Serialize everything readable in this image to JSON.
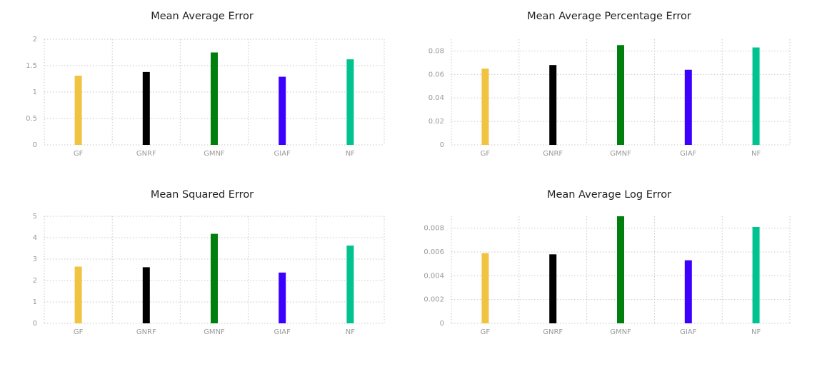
{
  "chart_data": [
    {
      "type": "bar",
      "title": "Mean Average Error",
      "categories": [
        "GF",
        "GNRF",
        "GMNF",
        "GIAF",
        "NF"
      ],
      "values": [
        1.31,
        1.38,
        1.75,
        1.29,
        1.62
      ],
      "ylim": [
        0,
        2
      ],
      "yticks": [
        "0",
        "0.5",
        "1",
        "1.5",
        "2"
      ],
      "ytick_values": [
        0,
        0.5,
        1,
        1.5,
        2
      ],
      "grid": true
    },
    {
      "type": "bar",
      "title": "Mean Average Percentage Error",
      "categories": [
        "GF",
        "GNRF",
        "GMNF",
        "GIAF",
        "NF"
      ],
      "values": [
        0.065,
        0.068,
        0.085,
        0.064,
        0.083
      ],
      "ylim": [
        0,
        0.09
      ],
      "yticks": [
        "0",
        "0.02",
        "0.04",
        "0.06",
        "0.08"
      ],
      "ytick_values": [
        0,
        0.02,
        0.04,
        0.06,
        0.08
      ],
      "grid": true
    },
    {
      "type": "bar",
      "title": "Mean Squared Error",
      "categories": [
        "GF",
        "GNRF",
        "GMNF",
        "GIAF",
        "NF"
      ],
      "values": [
        2.65,
        2.62,
        4.18,
        2.37,
        3.63
      ],
      "ylim": [
        0,
        5
      ],
      "yticks": [
        "0",
        "1",
        "2",
        "3",
        "4",
        "5"
      ],
      "ytick_values": [
        0,
        1,
        2,
        3,
        4,
        5
      ],
      "grid": true
    },
    {
      "type": "bar",
      "title": "Mean Average Log Error",
      "categories": [
        "GF",
        "GNRF",
        "GMNF",
        "GIAF",
        "NF"
      ],
      "values": [
        0.0059,
        0.0058,
        0.009,
        0.0053,
        0.0081
      ],
      "ylim": [
        0,
        0.009
      ],
      "yticks": [
        "0",
        "0.002",
        "0.004",
        "0.006",
        "0.008"
      ],
      "ytick_values": [
        0,
        0.002,
        0.004,
        0.006,
        0.008
      ],
      "grid": true
    }
  ],
  "bar_colors": [
    "#f0c340",
    "#000000",
    "#007f0e",
    "#3c00ff",
    "#00c38f"
  ]
}
